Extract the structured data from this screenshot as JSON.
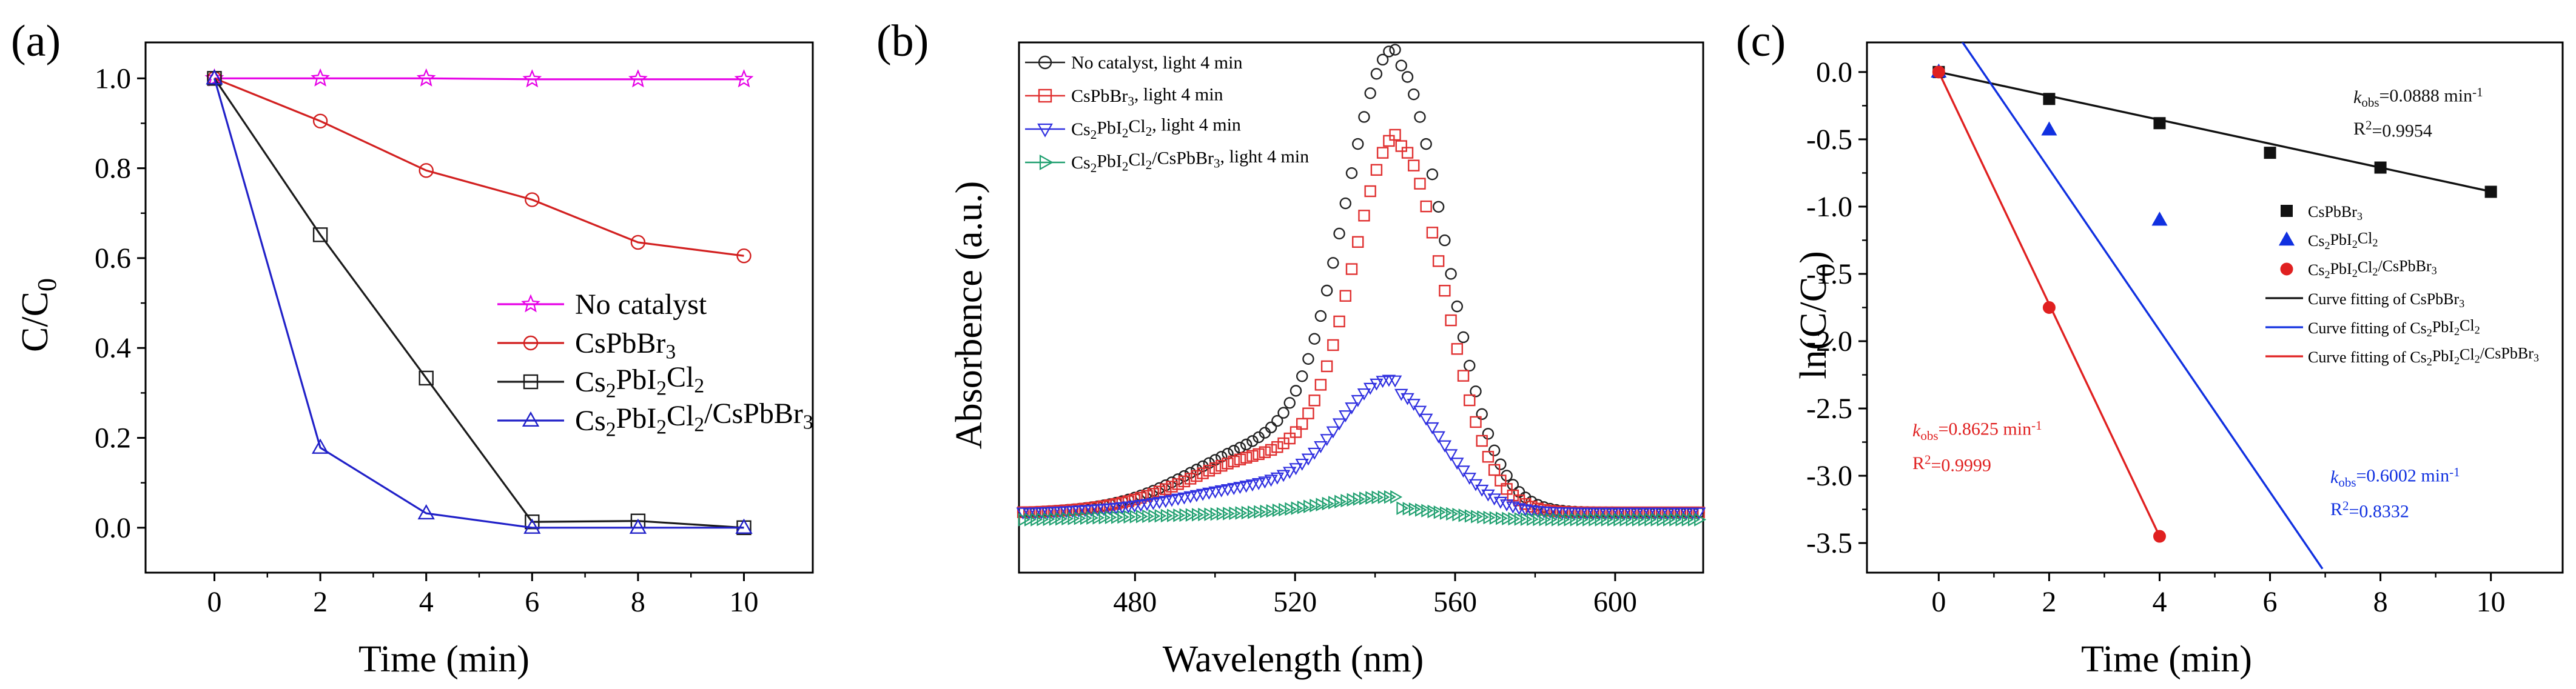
{
  "chart_data": [
    {
      "panel": "(a)",
      "type": "line",
      "xlabel": "Time (min)",
      "ylabel": "C/C",
      "ylabel_sub": "0",
      "xlim": [
        -1.3,
        11.3
      ],
      "ylim": [
        -0.1,
        1.08
      ],
      "xticks": [
        0,
        2,
        4,
        6,
        8,
        10
      ],
      "yticks": [
        0.0,
        0.2,
        0.4,
        0.6,
        0.8,
        1.0
      ],
      "ytick_labels": [
        "0.0",
        "0.2",
        "0.4",
        "0.6",
        "0.8",
        "1.0"
      ],
      "legend_position": "lower-right",
      "x": [
        0,
        2,
        4,
        6,
        8,
        10
      ],
      "series": [
        {
          "name": "No catalyst",
          "legend": [
            {
              "t": "No catalyst",
              "s": ""
            }
          ],
          "color": "#e600e6",
          "marker": "star",
          "values": [
            1.0,
            1.0,
            1.0,
            0.998,
            0.998,
            0.998
          ]
        },
        {
          "name": "CsPbBr3",
          "legend": [
            {
              "t": "CsPbBr",
              "s": ""
            },
            {
              "t": "3",
              "s": "sub"
            }
          ],
          "color": "#d22020",
          "marker": "circle",
          "values": [
            1.0,
            0.905,
            0.795,
            0.73,
            0.635,
            0.605
          ]
        },
        {
          "name": "Cs2PbI2Cl2",
          "legend": [
            {
              "t": "Cs",
              "s": ""
            },
            {
              "t": "2",
              "s": "sub"
            },
            {
              "t": "PbI",
              "s": ""
            },
            {
              "t": "2",
              "s": "sub"
            },
            {
              "t": "Cl",
              "s": ""
            },
            {
              "t": "2",
              "s": "sub"
            }
          ],
          "color": "#1a1a1a",
          "marker": "square",
          "values": [
            1.0,
            0.652,
            0.333,
            0.013,
            0.015,
            0.0
          ]
        },
        {
          "name": "Cs2PbI2Cl2/CsPbBr3",
          "legend": [
            {
              "t": "Cs",
              "s": ""
            },
            {
              "t": "2",
              "s": "sub"
            },
            {
              "t": "PbI",
              "s": ""
            },
            {
              "t": "2",
              "s": "sub"
            },
            {
              "t": "Cl",
              "s": ""
            },
            {
              "t": "2",
              "s": "sub"
            },
            {
              "t": "/CsPbBr",
              "s": ""
            },
            {
              "t": "3",
              "s": "sub"
            }
          ],
          "color": "#2020c8",
          "marker": "triangle",
          "values": [
            1.0,
            0.178,
            0.032,
            0.0,
            0.0,
            0.0
          ]
        }
      ]
    },
    {
      "panel": "(b)",
      "type": "scatter",
      "xlabel": "Wavelength (nm)",
      "ylabel": "Absorbence (a.u.)",
      "xlim": [
        451,
        622
      ],
      "ylim": [
        -0.05,
        1.05
      ],
      "xticks": [
        480,
        520,
        560,
        600
      ],
      "yticks": [],
      "legend_position": "top-left",
      "series": [
        {
          "name": "No catalyst, light 4 min",
          "legend": [
            {
              "t": "No catalyst, light 4 min",
              "s": ""
            }
          ],
          "color": "#222222",
          "marker": "circle",
          "baseline": 0.075,
          "peak_x": 545,
          "peak_y": 0.99,
          "width": 12.5,
          "shoulder": 0.12
        },
        {
          "name": "CsPbBr3, light 4 min",
          "legend": [
            {
              "t": "CsPbBr",
              "s": ""
            },
            {
              "t": "3",
              "s": "sub"
            },
            {
              "t": ", light 4 min",
              "s": ""
            }
          ],
          "color": "#e03030",
          "marker": "square",
          "baseline": 0.075,
          "peak_x": 546,
          "peak_y": 0.82,
          "width": 11.5,
          "shoulder": 0.1
        },
        {
          "name": "Cs2PbI2Cl2, light 4 min",
          "legend": [
            {
              "t": "Cs",
              "s": ""
            },
            {
              "t": "2",
              "s": "sub"
            },
            {
              "t": "PbI",
              "s": ""
            },
            {
              "t": "2",
              "s": "sub"
            },
            {
              "t": "Cl",
              "s": ""
            },
            {
              "t": "2",
              "s": "sub"
            },
            {
              "t": ", light 4 min",
              "s": ""
            }
          ],
          "color": "#3030e0",
          "marker": "triangle-down",
          "baseline": 0.075,
          "peak_x": 544,
          "peak_y": 0.32,
          "width": 12.5,
          "shoulder": 0.04
        },
        {
          "name": "Cs2PbI2Cl2/CsPbBr3, light 4 min",
          "legend": [
            {
              "t": "Cs",
              "s": ""
            },
            {
              "t": "2",
              "s": "sub"
            },
            {
              "t": "PbI",
              "s": ""
            },
            {
              "t": "2",
              "s": "sub"
            },
            {
              "t": "Cl",
              "s": ""
            },
            {
              "t": "2",
              "s": "sub"
            },
            {
              "t": "/CsPbBr",
              "s": ""
            },
            {
              "t": "3",
              "s": "sub"
            },
            {
              "t": ", light 4 min",
              "s": ""
            }
          ],
          "color": "#20a070",
          "marker": "triangle-right",
          "baseline": 0.06,
          "peak_x": 542,
          "peak_y": 0.085,
          "width": 14,
          "shoulder": 0.0
        }
      ]
    },
    {
      "panel": "(c)",
      "type": "scatter",
      "xlabel": "Time (min)",
      "ylabel": "ln(C/C",
      "ylabel_sub": "0",
      "ylabel_end": ")",
      "xlim": [
        -1.3,
        11.3
      ],
      "ylim": [
        -3.72,
        0.22
      ],
      "xticks": [
        0,
        2,
        4,
        6,
        8,
        10
      ],
      "yticks": [
        0.0,
        -0.5,
        -1.0,
        -1.5,
        -2.0,
        -2.5,
        -3.0,
        -3.5
      ],
      "ytick_labels": [
        "0.0",
        "-0.5",
        "-1.0",
        "-1.5",
        "-2.0",
        "-2.5",
        "-3.0",
        "-3.5"
      ],
      "legend_position": "right",
      "series": [
        {
          "name": "CsPbBr3",
          "legend": [
            {
              "t": "CsPbBr",
              "s": ""
            },
            {
              "t": "3",
              "s": "sub"
            }
          ],
          "color": "#111111",
          "marker": "square-filled",
          "x": [
            0,
            2,
            4,
            6,
            8,
            10
          ],
          "y": [
            0.0,
            -0.2,
            -0.38,
            -0.6,
            -0.71,
            -0.89
          ]
        },
        {
          "name": "Cs2PbI2Cl2",
          "legend": [
            {
              "t": "Cs",
              "s": ""
            },
            {
              "t": "2",
              "s": "sub"
            },
            {
              "t": "PbI",
              "s": ""
            },
            {
              "t": "2",
              "s": "sub"
            },
            {
              "t": "Cl",
              "s": ""
            },
            {
              "t": "2",
              "s": "sub"
            }
          ],
          "color": "#1030e0",
          "marker": "triangle-filled",
          "x": [
            0,
            2,
            4
          ],
          "y": [
            0.0,
            -0.43,
            -1.1
          ]
        },
        {
          "name": "Cs2PbI2Cl2/CsPbBr3",
          "legend": [
            {
              "t": "Cs",
              "s": ""
            },
            {
              "t": "2",
              "s": "sub"
            },
            {
              "t": "PbI",
              "s": ""
            },
            {
              "t": "2",
              "s": "sub"
            },
            {
              "t": "Cl",
              "s": ""
            },
            {
              "t": "2",
              "s": "sub"
            },
            {
              "t": "/CsPbBr",
              "s": ""
            },
            {
              "t": "3",
              "s": "sub"
            }
          ],
          "color": "#e02020",
          "marker": "circle-filled",
          "x": [
            0,
            2,
            4
          ],
          "y": [
            0.0,
            -1.75,
            -3.45
          ]
        }
      ],
      "fits": [
        {
          "name": "Curve fitting of CsPbBr3",
          "legend": [
            {
              "t": "Curve fitting of CsPbBr",
              "s": ""
            },
            {
              "t": "3",
              "s": "sub"
            }
          ],
          "color": "#111111",
          "slope": -0.0888,
          "intercept": 0.0,
          "x_range": [
            0,
            10
          ]
        },
        {
          "name": "Curve fitting of Cs2PbI2Cl2",
          "legend": [
            {
              "t": "Curve fitting of Cs",
              "s": ""
            },
            {
              "t": "2",
              "s": "sub"
            },
            {
              "t": "PbI",
              "s": ""
            },
            {
              "t": "2",
              "s": "sub"
            },
            {
              "t": "Cl",
              "s": ""
            },
            {
              "t": "2",
              "s": "sub"
            }
          ],
          "color": "#1030e0",
          "slope": -0.6002,
          "intercept": 0.48,
          "x_range": [
            -0.7,
            6.95
          ]
        },
        {
          "name": "Curve fitting of Cs2PbI2Cl2/CsPbBr3",
          "legend": [
            {
              "t": "Curve fitting of Cs",
              "s": ""
            },
            {
              "t": "2",
              "s": "sub"
            },
            {
              "t": "PbI",
              "s": ""
            },
            {
              "t": "2",
              "s": "sub"
            },
            {
              "t": "Cl",
              "s": ""
            },
            {
              "t": "2",
              "s": "sub"
            },
            {
              "t": "/CsPbBr",
              "s": ""
            },
            {
              "t": "3",
              "s": "sub"
            }
          ],
          "color": "#e02020",
          "slope": -0.8625,
          "intercept": 0.0,
          "x_range": [
            0,
            4
          ]
        }
      ],
      "annotations": [
        {
          "color": "#111111",
          "anchor": "upper-right",
          "kobs": [
            {
              "t": "k",
              "s": "italic"
            },
            {
              "t": "obs",
              "s": "sub"
            },
            {
              "t": "=0.0888 min",
              "s": ""
            },
            {
              "t": "-1",
              "s": "sup"
            }
          ],
          "r2": [
            {
              "t": "R",
              "s": ""
            },
            {
              "t": "2",
              "s": "sup"
            },
            {
              "t": "=0.9954",
              "s": ""
            }
          ]
        },
        {
          "color": "#e02020",
          "anchor": "lower-left",
          "kobs": [
            {
              "t": "k",
              "s": "italic"
            },
            {
              "t": "obs",
              "s": "sub"
            },
            {
              "t": "=0.8625 min",
              "s": ""
            },
            {
              "t": "-1",
              "s": "sup"
            }
          ],
          "r2": [
            {
              "t": "R",
              "s": ""
            },
            {
              "t": "2",
              "s": "sup"
            },
            {
              "t": "=0.9999",
              "s": ""
            }
          ]
        },
        {
          "color": "#1030e0",
          "anchor": "lower-right",
          "kobs": [
            {
              "t": "k",
              "s": "italic"
            },
            {
              "t": "obs",
              "s": "sub"
            },
            {
              "t": "=0.6002 min",
              "s": ""
            },
            {
              "t": "-1",
              "s": "sup"
            }
          ],
          "r2": [
            {
              "t": "R",
              "s": ""
            },
            {
              "t": "2",
              "s": "sup"
            },
            {
              "t": "=0.8332",
              "s": ""
            }
          ]
        }
      ]
    }
  ]
}
